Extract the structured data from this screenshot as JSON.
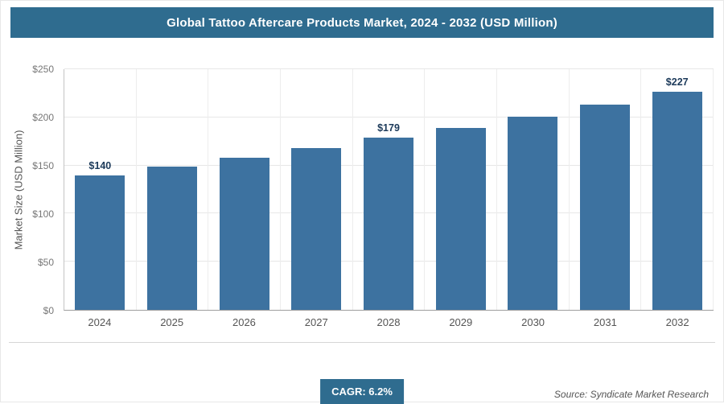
{
  "header": {
    "title": "Global Tattoo Aftercare Products Market, 2024 - 2032 (USD Million)",
    "bg_color": "#2f6c8f"
  },
  "chart_data": {
    "type": "bar",
    "title": "Global Tattoo Aftercare Products Market, 2024 - 2032 (USD Million)",
    "categories": [
      "2024",
      "2025",
      "2026",
      "2027",
      "2028",
      "2029",
      "2030",
      "2031",
      "2032"
    ],
    "values": [
      140,
      149,
      158,
      168,
      179,
      189,
      201,
      213,
      227
    ],
    "point_labels": [
      "$140",
      "",
      "",
      "",
      "$179",
      "",
      "",
      "",
      "$227"
    ],
    "xlabel": "",
    "ylabel": "Market Size (USD Million)",
    "yticks": [
      "$0",
      "$50",
      "$100",
      "$150",
      "$200",
      "$250"
    ],
    "ylim": [
      0,
      250
    ],
    "grid": true,
    "legend": "none",
    "bar_color": "#3d72a0"
  },
  "footer": {
    "cagr_label": "CAGR: 6.2%",
    "source": "Source: Syndicate Market Research"
  }
}
